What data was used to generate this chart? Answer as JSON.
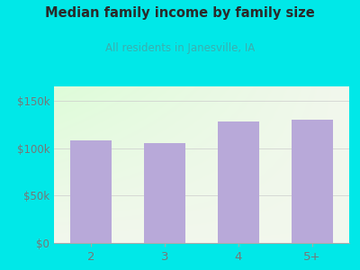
{
  "categories": [
    "2",
    "3",
    "4",
    "5+"
  ],
  "values": [
    108000,
    105000,
    128000,
    130000
  ],
  "bar_color": "#b8a9d9",
  "title": "Median family income by family size",
  "subtitle": "All residents in Janesville, IA",
  "title_color": "#2a2a2a",
  "subtitle_color": "#3aafaf",
  "bg_color": "#00e8e8",
  "yticks": [
    0,
    50000,
    100000,
    150000
  ],
  "ytick_labels": [
    "$0",
    "$50k",
    "$100k",
    "$150k"
  ],
  "ylim": [
    0,
    165000
  ],
  "tick_color": "#777777",
  "plot_bg_color_topleft": "#eaf6e2",
  "plot_bg_color_topright": "#f5f5f5",
  "plot_bg_color_bottom": "#ffffff"
}
